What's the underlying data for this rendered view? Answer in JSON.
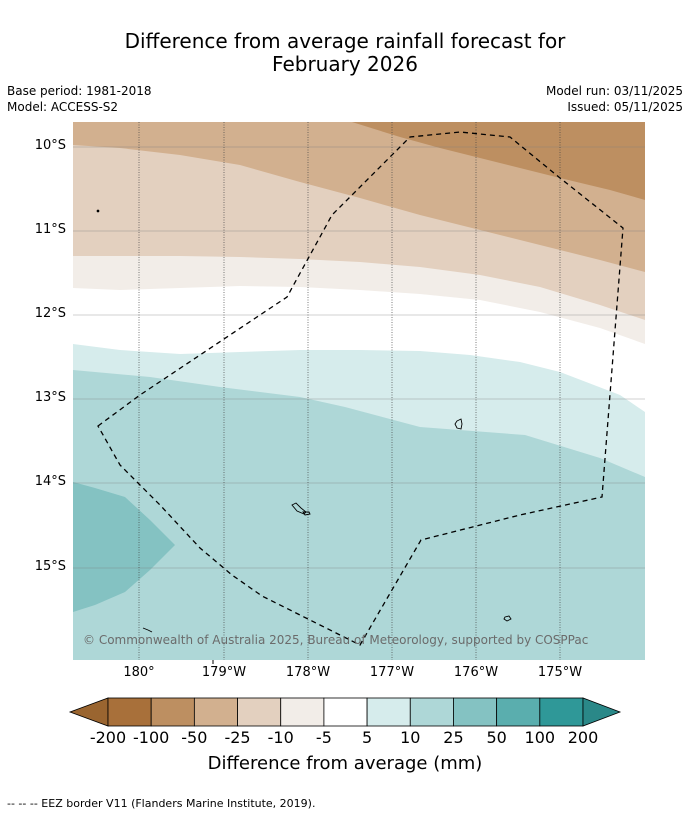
{
  "title_line1": "Difference from average rainfall forecast for",
  "title_line2": "February 2026",
  "base_period": "Base period: 1981-2018",
  "model": "Model: ACCESS-S2",
  "model_run": "Model run: 03/11/2025",
  "issued": "Issued: 05/11/2025",
  "lat_labels": [
    "10°S",
    "11°S",
    "12°S",
    "13°S",
    "14°S",
    "15°S"
  ],
  "lon_labels": [
    "180°",
    "179°W",
    "178°W",
    "177°W",
    "176°W",
    "175°W"
  ],
  "copyright": "© Commonwealth of Australia 2025, Bureau of Meteorology, supported by COSPPac",
  "colorbar": {
    "title": "Difference from average (mm)",
    "tick_labels": [
      "-200",
      "-100",
      "-50",
      "-25",
      "-10",
      "-5",
      "5",
      "10",
      "25",
      "50",
      "100",
      "200"
    ],
    "colors": [
      "#a8703a",
      "#bd8f61",
      "#d2b08f",
      "#e3d0bf",
      "#f2ede8",
      "#ffffff",
      "#d6ecec",
      "#aed7d7",
      "#84c2c2",
      "#5aaeae",
      "#2f9898"
    ],
    "under_color": "#9a6530",
    "over_color": "#2a8888"
  },
  "legend_note": "-- -- -- EEZ border V11 (Flanders Marine Institute, 2019)."
}
